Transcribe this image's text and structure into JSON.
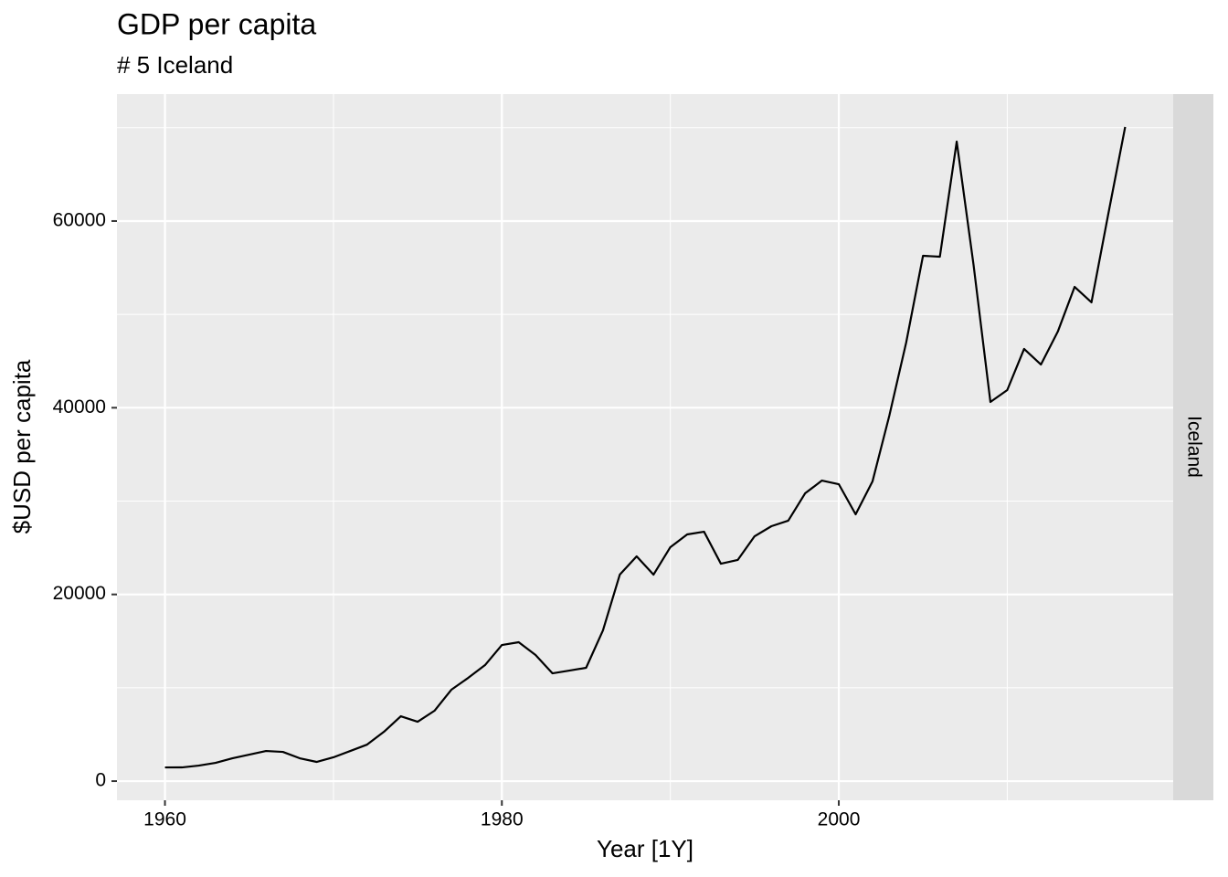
{
  "chart_data": {
    "type": "line",
    "title": "GDP per capita",
    "subtitle": "# 5 Iceland",
    "x_label": "Year [1Y]",
    "y_label": "$USD per capita",
    "facet_label": "Iceland",
    "x": [
      1960,
      1961,
      1962,
      1963,
      1964,
      1965,
      1966,
      1967,
      1968,
      1969,
      1970,
      1971,
      1972,
      1973,
      1974,
      1975,
      1976,
      1977,
      1978,
      1979,
      1980,
      1981,
      1982,
      1983,
      1984,
      1985,
      1986,
      1987,
      1988,
      1989,
      1990,
      1991,
      1992,
      1993,
      1994,
      1995,
      1996,
      1997,
      1998,
      1999,
      2000,
      2001,
      2002,
      2003,
      2004,
      2005,
      2006,
      2007,
      2008,
      2009,
      2010,
      2011,
      2012,
      2013,
      2014,
      2015,
      2016,
      2017
    ],
    "series": [
      {
        "name": "Iceland",
        "color": "#000000",
        "values": [
          1468,
          1470,
          1660,
          1960,
          2450,
          2840,
          3230,
          3130,
          2450,
          2060,
          2550,
          3230,
          3915,
          5285,
          6950,
          6360,
          7540,
          9790,
          11060,
          12430,
          14580,
          14880,
          13510,
          11550,
          11840,
          12140,
          16150,
          22120,
          24080,
          22120,
          25060,
          26430,
          26720,
          23290,
          23690,
          26230,
          27310,
          27900,
          30830,
          32200,
          31810,
          28580,
          32100,
          39150,
          46980,
          56280,
          56180,
          68510,
          55300,
          40620,
          41890,
          46300,
          44630,
          48150,
          52950,
          51290,
          60780,
          70080
        ]
      }
    ],
    "xlim": [
      1957.15,
      2019.85
    ],
    "xticks": [
      1960,
      1980,
      2000
    ],
    "x_minor_ticks": [
      1970,
      1990,
      2010
    ],
    "ylim": [
      -2050,
      73600
    ],
    "yticks": [
      0,
      20000,
      40000,
      60000
    ],
    "y_minor_ticks": [
      10000,
      30000,
      50000,
      70000
    ],
    "grid": true
  }
}
